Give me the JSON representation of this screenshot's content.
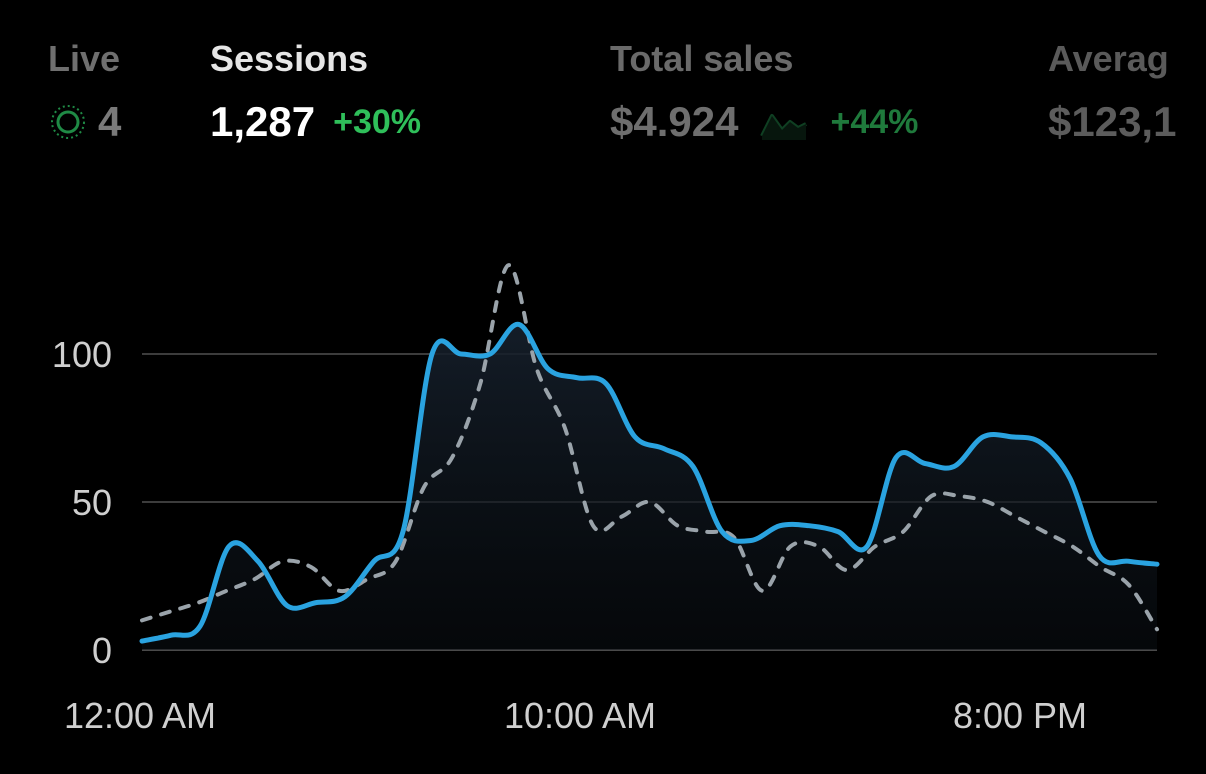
{
  "metrics": {
    "live": {
      "label": "Live",
      "value": "4",
      "icon": "live-pulse-icon",
      "color": "#1f8a45"
    },
    "sessions": {
      "label": "Sessions",
      "value": "1,287",
      "change": "+30%",
      "change_color": "#2fbf5a"
    },
    "total_sales": {
      "label": "Total sales",
      "value": "$4.924",
      "icon": "sparkline-icon",
      "change": "+44%",
      "change_color": "#1f7a3c"
    },
    "average": {
      "label": "Averag",
      "value": "$123,1"
    }
  },
  "chart_data": {
    "type": "line",
    "x_ticks": [
      "12:00 AM",
      "10:00 AM",
      "8:00 PM"
    ],
    "y_ticks": [
      0,
      50,
      100
    ],
    "ylim": [
      0,
      135
    ],
    "grid": true,
    "series": [
      {
        "style": "solid",
        "color": "#2aa3e0",
        "values": [
          3,
          5,
          8,
          35,
          30,
          15,
          16,
          18,
          30,
          40,
          100,
          100,
          100,
          110,
          95,
          92,
          90,
          72,
          68,
          62,
          40,
          37,
          42,
          42,
          40,
          35,
          65,
          63,
          62,
          72,
          72,
          70,
          58,
          32,
          30,
          29
        ]
      },
      {
        "style": "dashed",
        "color": "#9aa3aa",
        "values": [
          10,
          13,
          16,
          20,
          24,
          30,
          28,
          20,
          24,
          30,
          55,
          65,
          90,
          130,
          95,
          75,
          42,
          45,
          50,
          42,
          40,
          38,
          20,
          35,
          35,
          27,
          35,
          40,
          52,
          52,
          50,
          45,
          40,
          35,
          28,
          22,
          7
        ]
      }
    ]
  }
}
